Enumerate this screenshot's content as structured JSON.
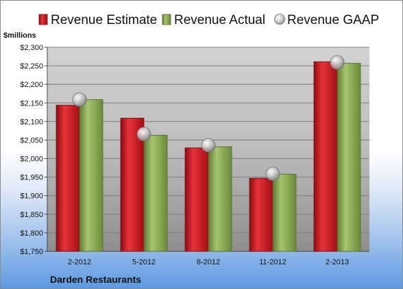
{
  "chart_data": {
    "type": "bar",
    "unit_label": "$millions",
    "footer": "Darden Restaurants",
    "categories": [
      "2-2012",
      "5-2012",
      "8-2012",
      "11-2012",
      "2-2013"
    ],
    "series": [
      {
        "name": "Revenue Estimate",
        "kind": "bar",
        "color": "#c8161e",
        "values": [
          2144,
          2109,
          2029,
          1947,
          2261
        ]
      },
      {
        "name": "Revenue Actual",
        "kind": "bar",
        "color": "#86a653",
        "values": [
          2159,
          2063,
          2032,
          1958,
          2257
        ]
      },
      {
        "name": "Revenue GAAP",
        "kind": "marker",
        "color": "#b8b8b8",
        "values": [
          2159,
          2066,
          2036,
          1959,
          2259
        ]
      }
    ],
    "ylim": [
      1750,
      2300
    ],
    "y_ticks": [
      1750,
      1800,
      1850,
      1900,
      1950,
      2000,
      2050,
      2100,
      2150,
      2200,
      2250,
      2300
    ],
    "y_tick_labels": [
      "$1,750",
      "$1,800",
      "$1,850",
      "$1,900",
      "$1,950",
      "$2,000",
      "$2,050",
      "$2,100",
      "$2,150",
      "$2,200",
      "$2,250",
      "$2,300"
    ],
    "grid": true,
    "legend_position": "top"
  }
}
